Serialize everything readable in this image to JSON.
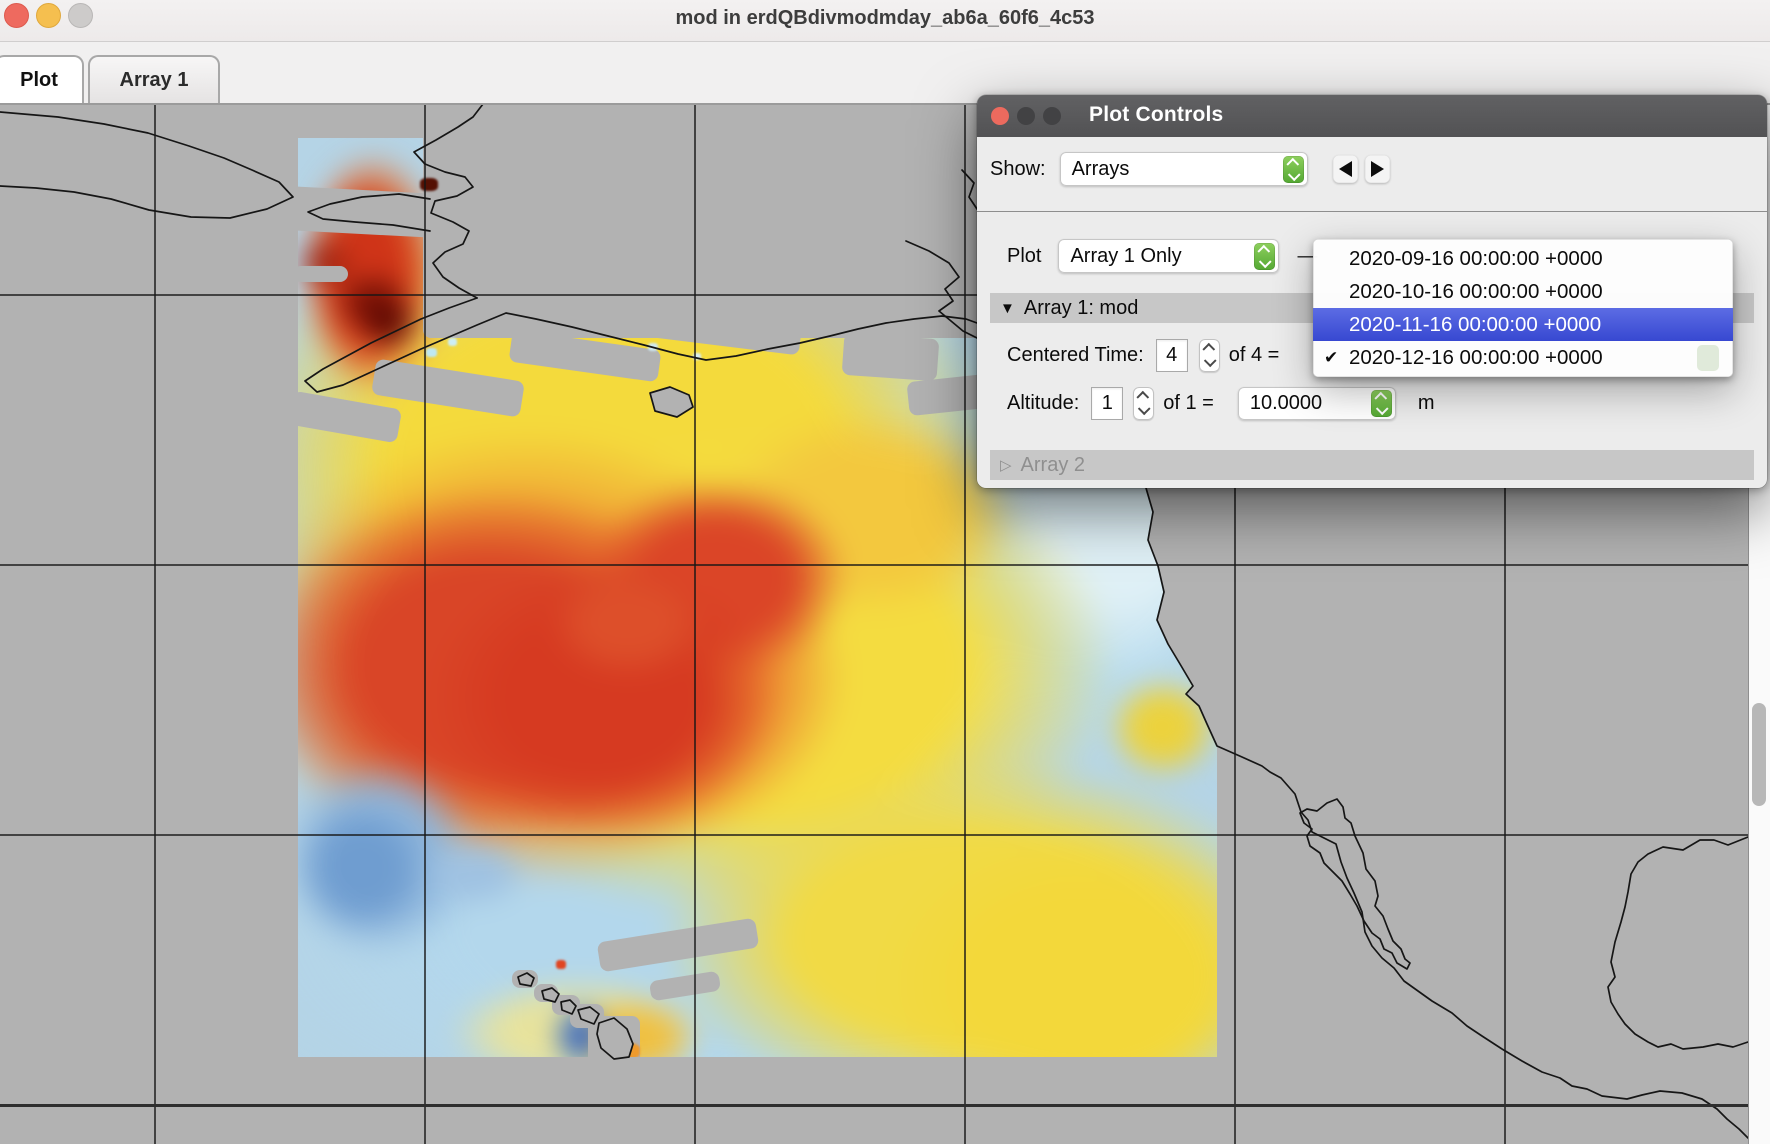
{
  "window": {
    "title": "mod in erdQBdivmodmday_ab6a_60f6_4c53",
    "tabs": [
      {
        "label": "Plot"
      },
      {
        "label": "Array 1"
      }
    ]
  },
  "plot_controls": {
    "title": "Plot Controls",
    "show": {
      "label": "Show:",
      "value": "Arrays"
    },
    "plot": {
      "label": "Plot",
      "value": "Array 1 Only",
      "dash": "—"
    },
    "array1": {
      "disclosure": "▼",
      "title": "Array 1: mod",
      "centered_time": {
        "label": "Centered Time:",
        "value": "4",
        "suffix": "of 4 ="
      },
      "altitude": {
        "label": "Altitude:",
        "value": "1",
        "suffix": "of 1 =",
        "unit_value": "10.0000",
        "unit": "m"
      }
    },
    "array2": {
      "disclosure": "▷",
      "title": "Array 2"
    }
  },
  "time_menu": {
    "checkmark": "✔",
    "items": [
      "2020-09-16 00:00:00 +0000",
      "2020-10-16 00:00:00 +0000",
      "2020-11-16 00:00:00 +0000",
      "2020-12-16 00:00:00 +0000"
    ],
    "selected_index": 2,
    "checked_index": 3
  }
}
